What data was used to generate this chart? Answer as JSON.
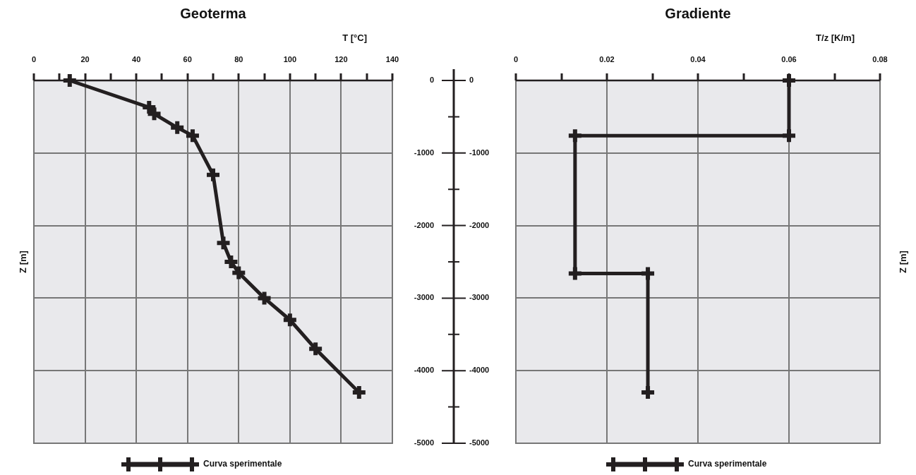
{
  "chart_data": [
    {
      "type": "line",
      "title": "Geoterma",
      "xlabel": "T [°C]",
      "ylabel": "Z [m]",
      "series": [
        {
          "name": "Curva sperimentale",
          "color": "#231f20",
          "x": [
            14,
            45,
            47,
            56,
            62,
            70,
            74,
            77,
            80,
            90,
            100,
            110,
            127
          ],
          "values": [
            0,
            -370,
            -460,
            -650,
            -760,
            -1300,
            -2240,
            -2500,
            -2650,
            -3000,
            -3300,
            -3700,
            -4300
          ]
        }
      ],
      "xlim": [
        0,
        140
      ],
      "xticks": [
        0,
        {
          "value": 10,
          "label": null
        },
        20,
        {
          "value": 30,
          "label": null
        },
        40,
        {
          "value": 50,
          "label": null
        },
        60,
        {
          "value": 70,
          "label": null
        },
        80,
        {
          "value": 90,
          "label": null
        },
        100,
        {
          "value": 110,
          "label": null
        },
        120,
        {
          "value": 130,
          "label": null
        },
        140
      ],
      "ylim": [
        -5000,
        0
      ],
      "yticks": [
        0,
        -1000,
        -2000,
        -3000,
        -4000,
        -5000
      ],
      "grid": true,
      "legend": "bottom",
      "marker": "cross",
      "line_style": "solid"
    },
    {
      "type": "line",
      "title": "Gradiente",
      "xlabel": "T/z [K/m]",
      "ylabel": "Z [m]",
      "series": [
        {
          "name": "Curva sperimentale",
          "color": "#231f20",
          "x": [
            0.06,
            0.06,
            0.013,
            0.013,
            0.029,
            0.029
          ],
          "values": [
            0,
            -760,
            -760,
            -2660,
            -2660,
            -4300
          ]
        }
      ],
      "xlim": [
        0,
        0.08
      ],
      "xticks": [
        0,
        {
          "value": 0.01,
          "label": null
        },
        0.02,
        {
          "value": 0.03,
          "label": null
        },
        0.04,
        {
          "value": 0.05,
          "label": null
        },
        0.06,
        {
          "value": 0.07,
          "label": null
        },
        0.08
      ],
      "ylim": [
        -5000,
        0
      ],
      "yticks": [
        0,
        -1000,
        -2000,
        -3000,
        -4000,
        -5000
      ],
      "grid": true,
      "legend": "bottom",
      "marker": "cross",
      "line_style": "solid"
    }
  ]
}
